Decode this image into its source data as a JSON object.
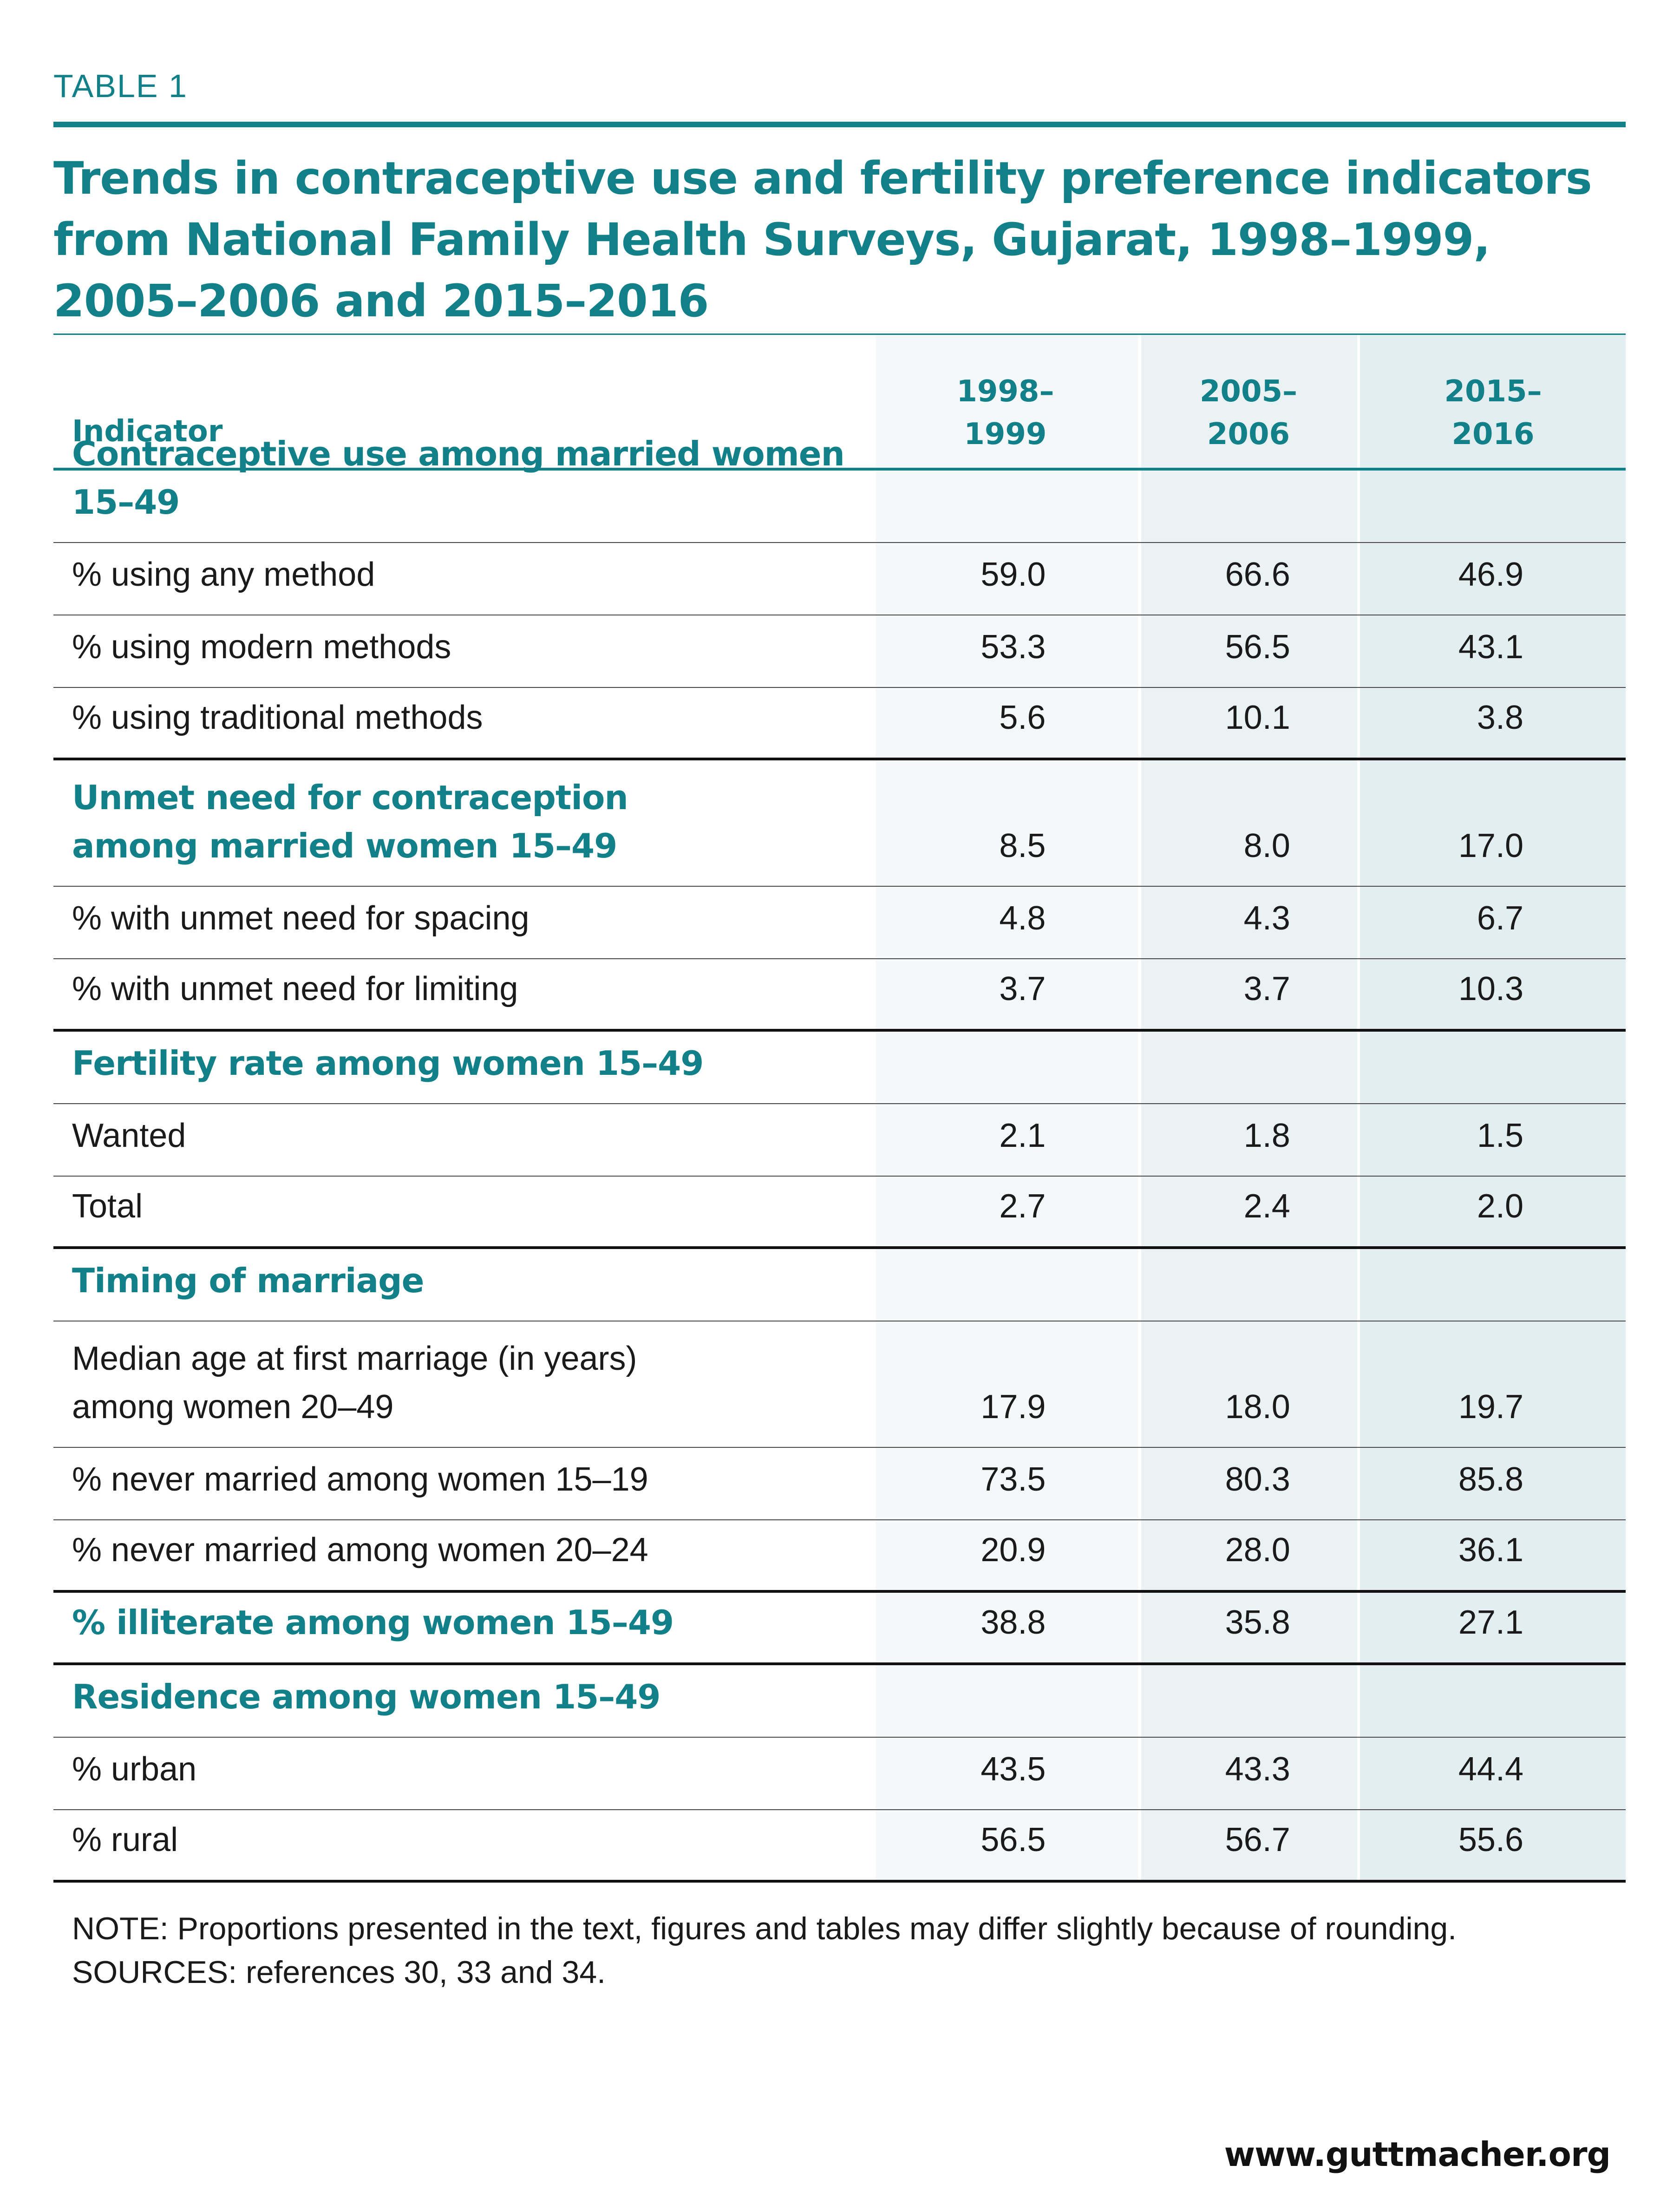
{
  "kicker": "TABLE 1",
  "title": "Trends in contraceptive use and fertility preference indicators from National Family Health Surveys, Gujarat, 1998–1999, 2005–2006 and 2015–2016",
  "columns": {
    "indicator": "Indicator",
    "y1": [
      "1998–",
      "1999"
    ],
    "y2": [
      "2005–",
      "2006"
    ],
    "y3": [
      "2015–",
      "2016"
    ]
  },
  "rows": [
    {
      "label": "Contraceptive use among married women 15–49",
      "type": "section",
      "values": [
        "",
        "",
        ""
      ]
    },
    {
      "label": "% using any method",
      "type": "item",
      "values": [
        "59.0",
        "66.6",
        "46.9"
      ]
    },
    {
      "label": "% using modern methods",
      "type": "item",
      "values": [
        "53.3",
        "56.5",
        "43.1"
      ]
    },
    {
      "label": "% using traditional methods",
      "type": "item",
      "values": [
        "5.6",
        "10.1",
        "3.8"
      ]
    },
    {
      "label": "Unmet need for contraception\namong married women 15–49",
      "type": "section",
      "values": [
        "8.5",
        "8.0",
        "17.0"
      ]
    },
    {
      "label": "% with unmet need for spacing",
      "type": "item",
      "values": [
        "4.8",
        "4.3",
        "6.7"
      ]
    },
    {
      "label": "% with unmet need for limiting",
      "type": "item",
      "values": [
        "3.7",
        "3.7",
        "10.3"
      ]
    },
    {
      "label": "Fertility rate among women 15–49",
      "type": "section",
      "values": [
        "",
        "",
        ""
      ]
    },
    {
      "label": "Wanted",
      "type": "item",
      "values": [
        "2.1",
        "1.8",
        "1.5"
      ]
    },
    {
      "label": "Total",
      "type": "item",
      "values": [
        "2.7",
        "2.4",
        "2.0"
      ]
    },
    {
      "label": "Timing of marriage",
      "type": "section",
      "values": [
        "",
        "",
        ""
      ]
    },
    {
      "label": "Median age at first marriage (in years)\namong women 20–49",
      "type": "item",
      "values": [
        "17.9",
        "18.0",
        "19.7"
      ]
    },
    {
      "label": "% never married among women 15–19",
      "type": "item",
      "values": [
        "73.5",
        "80.3",
        "85.8"
      ]
    },
    {
      "label": "% never married among women 20–24",
      "type": "item",
      "values": [
        "20.9",
        "28.0",
        "36.1"
      ]
    },
    {
      "label": "% illiterate among women 15–49",
      "type": "section",
      "values": [
        "38.8",
        "35.8",
        "27.1"
      ]
    },
    {
      "label": "Residence among women 15–49",
      "type": "section",
      "values": [
        "",
        "",
        ""
      ]
    },
    {
      "label": "% urban",
      "type": "item",
      "values": [
        "43.5",
        "43.3",
        "44.4"
      ]
    },
    {
      "label": "% rural",
      "type": "item",
      "values": [
        "56.5",
        "56.7",
        "55.6"
      ]
    }
  ],
  "note": "NOTE: Proportions presented in the text, figures and tables may differ slightly because of rounding. SOURCES: references 30, 33 and 34.",
  "footer": "www.guttmacher.org",
  "colors": {
    "accent": "#118089",
    "col1_bg": "#f4f8f9",
    "col2_bg": "#eaf2f3",
    "col3_bg": "#e2eeef"
  }
}
